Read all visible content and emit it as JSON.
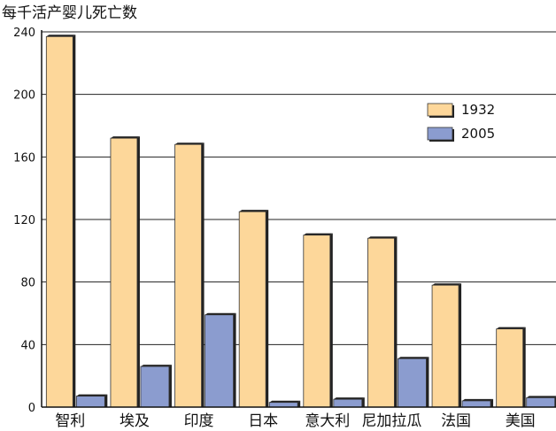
{
  "chart_data": {
    "type": "bar",
    "title": "",
    "ylabel": "每千活产婴儿死亡数",
    "xlabel": "",
    "ylim": [
      0,
      240
    ],
    "yticks": [
      0,
      40,
      80,
      120,
      160,
      200,
      240
    ],
    "grid": true,
    "legend_position": "right",
    "categories": [
      "智利",
      "埃及",
      "印度",
      "日本",
      "意大利",
      "尼加拉瓜",
      "法国",
      "美国"
    ],
    "series": [
      {
        "name": "1932",
        "color": "#FDD79A",
        "values": [
          237,
          172,
          168,
          125,
          110,
          108,
          78,
          50
        ]
      },
      {
        "name": "2005",
        "color": "#8B9CCF",
        "values": [
          7,
          26,
          59,
          3,
          5,
          31,
          4,
          6
        ]
      }
    ]
  }
}
